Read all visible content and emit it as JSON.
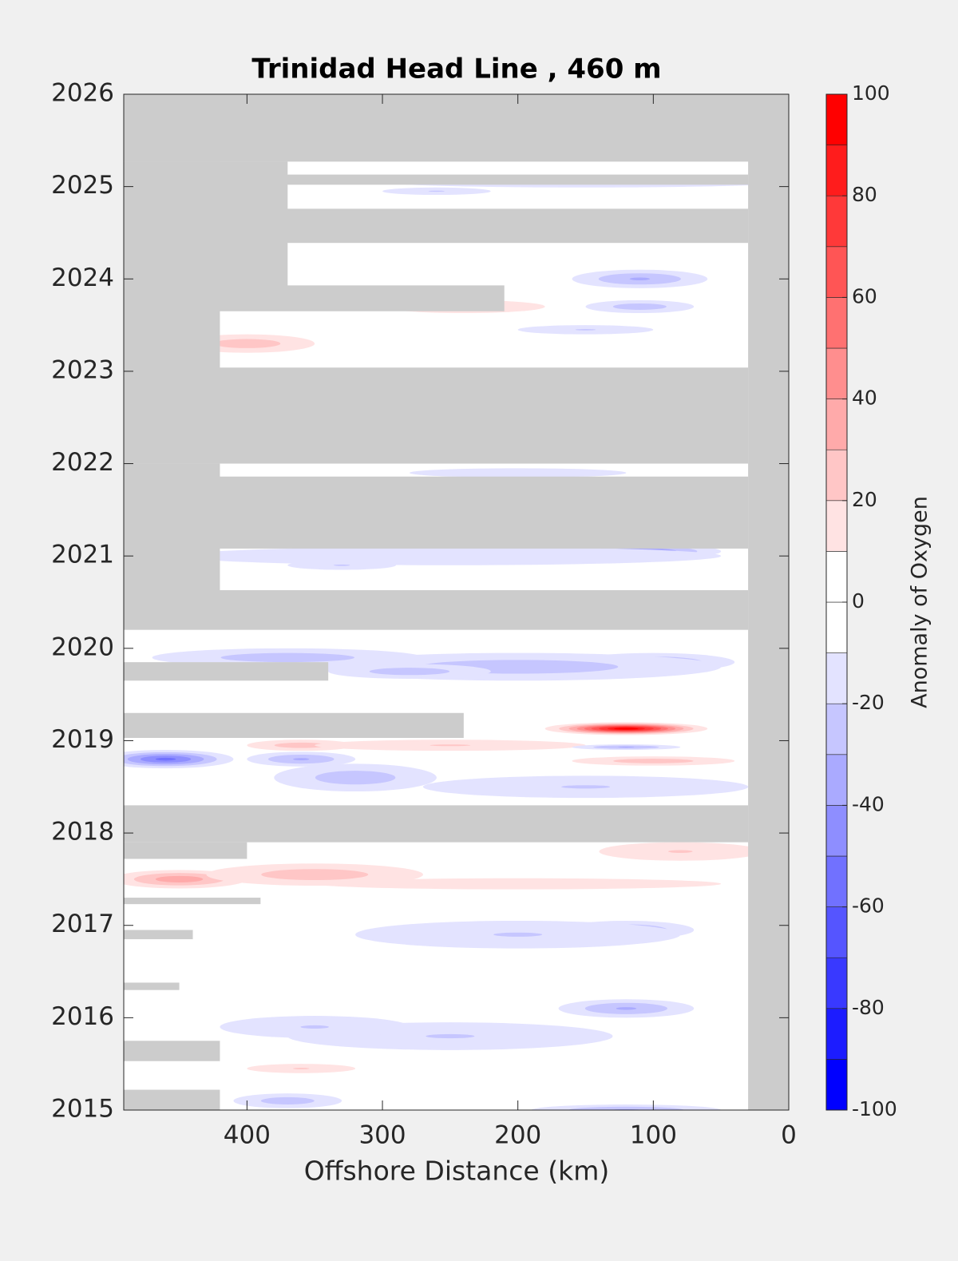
{
  "chart_data": {
    "type": "contour",
    "title": "Trinidad Head Line , 460 m",
    "xlabel": "Offshore Distance (km)",
    "xlim": [
      491,
      0
    ],
    "xticks": [
      400,
      300,
      200,
      100,
      0
    ],
    "ylim": [
      2015,
      2026
    ],
    "yticks": [
      2015,
      2016,
      2017,
      2018,
      2019,
      2020,
      2021,
      2022,
      2023,
      2024,
      2025,
      2026
    ],
    "colorbar": {
      "label": "Anomaly of Oxygen",
      "clim": [
        -100,
        100
      ],
      "cticks": [
        -100,
        -80,
        -60,
        -40,
        -20,
        0,
        20,
        40,
        60,
        80,
        100
      ],
      "step": 10,
      "low_color": "#0000ff",
      "mid_color": "#ffffff",
      "high_color": "#ff0000"
    },
    "no_data_color": "#cccccc",
    "no_data": [
      {
        "x": [
          30,
          0
        ],
        "y": [
          2015,
          2026
        ]
      },
      {
        "x": [
          491,
          0
        ],
        "y": [
          2025.27,
          2026
        ]
      },
      {
        "x": [
          491,
          30
        ],
        "y": [
          2025.02,
          2025.13
        ]
      },
      {
        "x": [
          491,
          30
        ],
        "y": [
          2024.39,
          2024.76
        ]
      },
      {
        "x": [
          491,
          370
        ],
        "y": [
          2023.9,
          2025.27
        ]
      },
      {
        "x": [
          491,
          420
        ],
        "y": [
          2023.03,
          2025.27
        ]
      },
      {
        "x": [
          491,
          210
        ],
        "y": [
          2023.65,
          2023.93
        ]
      },
      {
        "x": [
          491,
          30
        ],
        "y": [
          2022.0,
          2023.04
        ]
      },
      {
        "x": [
          491,
          30
        ],
        "y": [
          2021.08,
          2021.86
        ]
      },
      {
        "x": [
          491,
          420
        ],
        "y": [
          2020.6,
          2022.0
        ]
      },
      {
        "x": [
          491,
          30
        ],
        "y": [
          2020.2,
          2020.63
        ]
      },
      {
        "x": [
          491,
          340
        ],
        "y": [
          2019.65,
          2019.85
        ]
      },
      {
        "x": [
          491,
          240
        ],
        "y": [
          2019.03,
          2019.3
        ]
      },
      {
        "x": [
          491,
          30
        ],
        "y": [
          2017.9,
          2018.3
        ]
      },
      {
        "x": [
          491,
          400
        ],
        "y": [
          2017.72,
          2017.9
        ]
      },
      {
        "x": [
          491,
          390
        ],
        "y": [
          2017.23,
          2017.3
        ]
      },
      {
        "x": [
          491,
          440
        ],
        "y": [
          2016.85,
          2016.95
        ]
      },
      {
        "x": [
          491,
          450
        ],
        "y": [
          2016.3,
          2016.38
        ]
      },
      {
        "x": [
          491,
          420
        ],
        "y": [
          2015.53,
          2015.75
        ]
      },
      {
        "x": [
          491,
          420
        ],
        "y": [
          2015.0,
          2015.22
        ]
      }
    ],
    "anomalies": [
      {
        "x": 120,
        "y": 2019.13,
        "rx": 60,
        "ry": 0.07,
        "value": 90
      },
      {
        "x": 460,
        "y": 2018.8,
        "rx": 50,
        "ry": 0.1,
        "value": -50
      },
      {
        "x": 360,
        "y": 2018.8,
        "rx": 40,
        "ry": 0.08,
        "value": -30
      },
      {
        "x": 320,
        "y": 2018.6,
        "rx": 60,
        "ry": 0.15,
        "value": -25
      },
      {
        "x": 100,
        "y": 2018.78,
        "rx": 60,
        "ry": 0.05,
        "value": 25
      },
      {
        "x": 360,
        "y": 2018.95,
        "rx": 40,
        "ry": 0.06,
        "value": 25
      },
      {
        "x": 250,
        "y": 2018.95,
        "rx": 100,
        "ry": 0.06,
        "value": 20
      },
      {
        "x": 120,
        "y": 2018.93,
        "rx": 40,
        "ry": 0.03,
        "value": -30
      },
      {
        "x": 150,
        "y": 2018.5,
        "rx": 120,
        "ry": 0.12,
        "value": -20
      },
      {
        "x": 450,
        "y": 2017.5,
        "rx": 50,
        "ry": 0.1,
        "value": 35
      },
      {
        "x": 350,
        "y": 2017.55,
        "rx": 80,
        "ry": 0.12,
        "value": 25
      },
      {
        "x": 200,
        "y": 2017.45,
        "rx": 150,
        "ry": 0.06,
        "value": 15
      },
      {
        "x": 80,
        "y": 2017.8,
        "rx": 60,
        "ry": 0.1,
        "value": 20
      },
      {
        "x": 120,
        "y": 2016.95,
        "rx": 50,
        "ry": 0.1,
        "value": -30
      },
      {
        "x": 200,
        "y": 2016.9,
        "rx": 120,
        "ry": 0.15,
        "value": -20
      },
      {
        "x": 120,
        "y": 2016.1,
        "rx": 50,
        "ry": 0.1,
        "value": -30
      },
      {
        "x": 250,
        "y": 2015.8,
        "rx": 120,
        "ry": 0.15,
        "value": -20
      },
      {
        "x": 350,
        "y": 2015.9,
        "rx": 70,
        "ry": 0.12,
        "value": -20
      },
      {
        "x": 360,
        "y": 2015.45,
        "rx": 40,
        "ry": 0.05,
        "value": 20
      },
      {
        "x": 370,
        "y": 2015.1,
        "rx": 40,
        "ry": 0.08,
        "value": -25
      },
      {
        "x": 120,
        "y": 2015.0,
        "rx": 70,
        "ry": 0.06,
        "value": -30
      },
      {
        "x": 100,
        "y": 2019.85,
        "rx": 60,
        "ry": 0.1,
        "value": -30
      },
      {
        "x": 200,
        "y": 2019.8,
        "rx": 150,
        "ry": 0.15,
        "value": -25
      },
      {
        "x": 280,
        "y": 2019.75,
        "rx": 60,
        "ry": 0.08,
        "value": -25
      },
      {
        "x": 370,
        "y": 2019.9,
        "rx": 100,
        "ry": 0.1,
        "value": -25
      },
      {
        "x": 110,
        "y": 2021.05,
        "rx": 60,
        "ry": 0.08,
        "value": -40
      },
      {
        "x": 250,
        "y": 2021.0,
        "rx": 200,
        "ry": 0.1,
        "value": -15
      },
      {
        "x": 330,
        "y": 2020.9,
        "rx": 40,
        "ry": 0.05,
        "value": -20
      },
      {
        "x": 110,
        "y": 2024.0,
        "rx": 50,
        "ry": 0.1,
        "value": -30
      },
      {
        "x": 110,
        "y": 2023.7,
        "rx": 40,
        "ry": 0.07,
        "value": -25
      },
      {
        "x": 240,
        "y": 2023.7,
        "rx": 60,
        "ry": 0.07,
        "value": 25
      },
      {
        "x": 150,
        "y": 2023.45,
        "rx": 50,
        "ry": 0.05,
        "value": -20
      },
      {
        "x": 400,
        "y": 2023.3,
        "rx": 50,
        "ry": 0.1,
        "value": 25
      },
      {
        "x": 150,
        "y": 2025.05,
        "rx": 150,
        "ry": 0.06,
        "value": -15
      },
      {
        "x": 260,
        "y": 2024.95,
        "rx": 40,
        "ry": 0.04,
        "value": -20
      },
      {
        "x": 200,
        "y": 2021.9,
        "rx": 80,
        "ry": 0.05,
        "value": -15
      }
    ]
  }
}
